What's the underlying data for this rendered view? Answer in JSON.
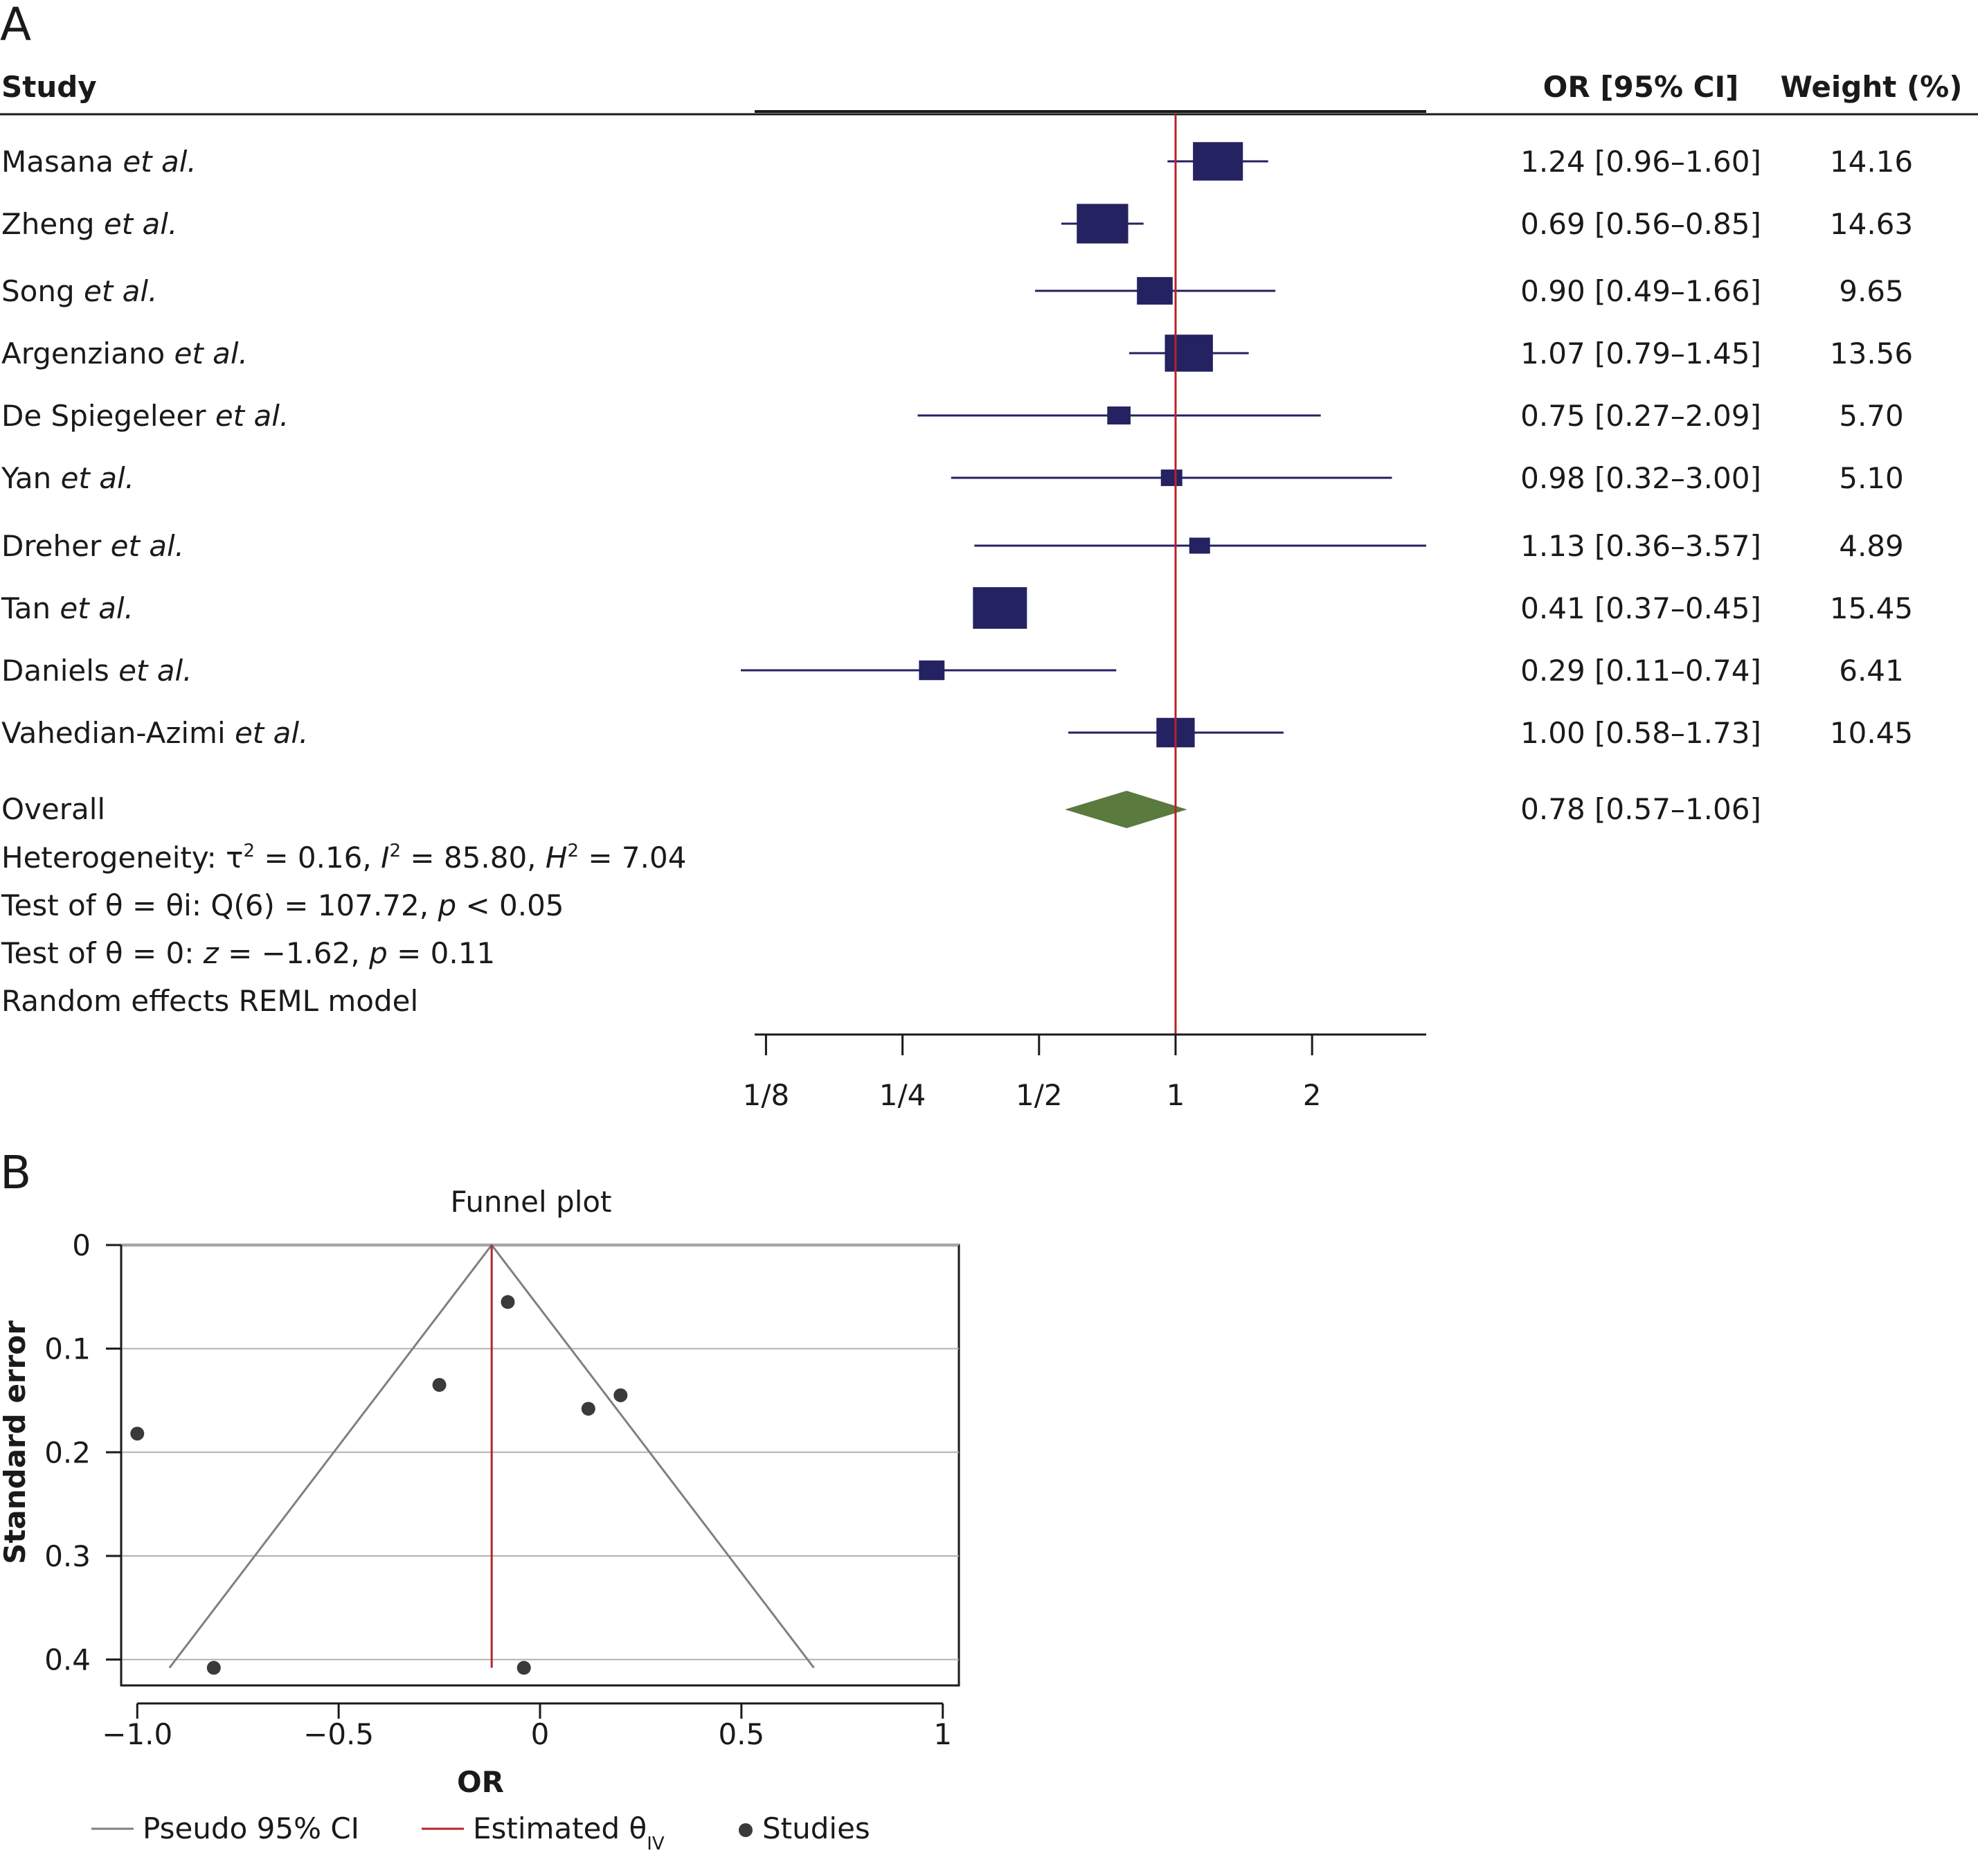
{
  "panels": {
    "a_label": "A",
    "b_label": "B"
  },
  "forest": {
    "header": {
      "study": "Study",
      "or_ci": "OR [95% CI]",
      "weight": "Weight (%)"
    },
    "studies": [
      {
        "name": "Masana",
        "suffix": "et al.",
        "or": 1.24,
        "lo": 0.96,
        "hi": 1.6,
        "ci_text": "1.24 [0.96–1.60]",
        "weight": 14.16,
        "weight_text": "14.16"
      },
      {
        "name": "Zheng",
        "suffix": "et al.",
        "or": 0.69,
        "lo": 0.56,
        "hi": 0.85,
        "ci_text": "0.69 [0.56–0.85]",
        "weight": 14.63,
        "weight_text": "14.63"
      },
      {
        "name": "Song",
        "suffix": "et al.",
        "or": 0.9,
        "lo": 0.49,
        "hi": 1.66,
        "ci_text": "0.90 [0.49–1.66]",
        "weight": 9.65,
        "weight_text": "9.65"
      },
      {
        "name": "Argenziano",
        "suffix": "et al.",
        "or": 1.07,
        "lo": 0.79,
        "hi": 1.45,
        "ci_text": "1.07 [0.79–1.45]",
        "weight": 13.56,
        "weight_text": "13.56"
      },
      {
        "name": "De Spiegeleer",
        "suffix": "et al.",
        "or": 0.75,
        "lo": 0.27,
        "hi": 2.09,
        "ci_text": "0.75 [0.27–2.09]",
        "weight": 5.7,
        "weight_text": "5.70"
      },
      {
        "name": "Yan",
        "suffix": "et al.",
        "or": 0.98,
        "lo": 0.32,
        "hi": 3.0,
        "ci_text": "0.98 [0.32–3.00]",
        "weight": 5.1,
        "weight_text": "5.10"
      },
      {
        "name": "Dreher",
        "suffix": "et al.",
        "or": 1.13,
        "lo": 0.36,
        "hi": 3.57,
        "ci_text": "1.13 [0.36–3.57]",
        "weight": 4.89,
        "weight_text": "4.89"
      },
      {
        "name": "Tan",
        "suffix": "et al.",
        "or": 0.41,
        "lo": 0.37,
        "hi": 0.45,
        "ci_text": "0.41 [0.37–0.45]",
        "weight": 15.45,
        "weight_text": "15.45"
      },
      {
        "name": "Daniels",
        "suffix": "et al.",
        "or": 0.29,
        "lo": 0.11,
        "hi": 0.74,
        "ci_text": "0.29 [0.11–0.74]",
        "weight": 6.41,
        "weight_text": "6.41"
      },
      {
        "name": "Vahedian-Azimi",
        "suffix": "et al.",
        "or": 1.0,
        "lo": 0.58,
        "hi": 1.73,
        "ci_text": "1.00 [0.58–1.73]",
        "weight": 10.45,
        "weight_text": "10.45"
      }
    ],
    "overall": {
      "label": "Overall",
      "or": 0.78,
      "lo": 0.57,
      "hi": 1.06,
      "ci_text": "0.78 [0.57–1.06]"
    },
    "heterogeneity": {
      "prefix": "Heterogeneity: τ",
      "tau_sup": "2",
      "tau_val": " = 0.16, ",
      "i_label": "I",
      "i_sup": "2",
      "i_val": " = 85.80, ",
      "h_label": "H",
      "h_sup": "2",
      "h_val": " = 7.04"
    },
    "test1": {
      "text": "Test of θ = θi: Q(6) = 107.72, ",
      "p": "p",
      "rest": " < 0.05"
    },
    "test2": {
      "prefix": "Test of θ = 0: ",
      "z": "z",
      "zval": " = −1.62, ",
      "p": "p",
      "rest": " = 0.11"
    },
    "model": "Random effects REML model",
    "x_ticks": [
      {
        "value": 0.125,
        "label": "1/8"
      },
      {
        "value": 0.25,
        "label": "1/4"
      },
      {
        "value": 0.5,
        "label": "1/2"
      },
      {
        "value": 1,
        "label": "1"
      },
      {
        "value": 2,
        "label": "2"
      }
    ],
    "reference_line": 1,
    "colors": {
      "square": "#242260",
      "diamond": "#5a7a3e",
      "reference": "#b5242c"
    }
  },
  "funnel": {
    "title": "Funnel plot",
    "xlabel": "OR",
    "ylabel": "Standard error",
    "x_ticks": [
      {
        "value": -1.0,
        "label": "−1.0"
      },
      {
        "value": -0.5,
        "label": "−0.5"
      },
      {
        "value": 0,
        "label": "0"
      },
      {
        "value": 0.5,
        "label": "0.5"
      },
      {
        "value": 1,
        "label": "1"
      }
    ],
    "y_ticks": [
      {
        "value": 0,
        "label": "0"
      },
      {
        "value": 0.1,
        "label": "0.1"
      },
      {
        "value": 0.2,
        "label": "0.2"
      },
      {
        "value": 0.3,
        "label": "0.3"
      },
      {
        "value": 0.4,
        "label": "0.4"
      }
    ],
    "estimate": -0.12,
    "legend": {
      "ci": "Pseudo 95% CI",
      "est_prefix": "Estimated θ",
      "est_sub": "IV",
      "studies": "Studies"
    },
    "colors": {
      "ci": "#808080",
      "estimate": "#b5242c",
      "point": "#3a3a3a",
      "grid": "#b0b0b0"
    }
  },
  "chart_data": [
    {
      "type": "forest",
      "scale": "log",
      "categories": [
        "Masana et al.",
        "Zheng et al.",
        "Song et al.",
        "Argenziano et al.",
        "De Spiegeleer et al.",
        "Yan et al.",
        "Dreher et al.",
        "Tan et al.",
        "Daniels et al.",
        "Vahedian-Azimi et al."
      ],
      "values": [
        1.24,
        0.69,
        0.9,
        1.07,
        0.75,
        0.98,
        1.13,
        0.41,
        0.29,
        1.0
      ],
      "ci_low": [
        0.96,
        0.56,
        0.49,
        0.79,
        0.27,
        0.32,
        0.36,
        0.37,
        0.11,
        0.58
      ],
      "ci_high": [
        1.6,
        0.85,
        1.66,
        1.45,
        2.09,
        3.0,
        3.57,
        0.45,
        0.74,
        1.73
      ],
      "weights": [
        14.16,
        14.63,
        9.65,
        13.56,
        5.7,
        5.1,
        4.89,
        15.45,
        6.41,
        10.45
      ],
      "overall": {
        "value": 0.78,
        "ci_low": 0.57,
        "ci_high": 1.06
      },
      "xticks": [
        "1/8",
        "1/4",
        "1/2",
        "1",
        "2"
      ],
      "xlim": [
        0.118,
        3.57
      ],
      "reference_line": 1
    },
    {
      "type": "scatter",
      "title": "Funnel plot",
      "xlabel": "OR",
      "ylabel": "Standard error",
      "xlim": [
        -1.04,
        1.04
      ],
      "ylim": [
        0.425,
        0
      ],
      "y_reversed": true,
      "grid": true,
      "legend": "bottom",
      "series": [
        {
          "name": "Studies",
          "x": [
            -0.08,
            -0.25,
            0.2,
            0.12,
            -1.0,
            -0.81,
            -0.04
          ],
          "y": [
            0.055,
            0.135,
            0.145,
            0.158,
            0.182,
            0.408,
            0.408
          ]
        },
        {
          "name": "Pseudo 95% CI",
          "x": [
            -0.92,
            -0.12,
            0.68
          ],
          "y": [
            0.408,
            0,
            0.408
          ]
        },
        {
          "name": "Estimated θIV",
          "x": [
            -0.12,
            -0.12
          ],
          "y": [
            0,
            0.408
          ]
        }
      ]
    }
  ]
}
